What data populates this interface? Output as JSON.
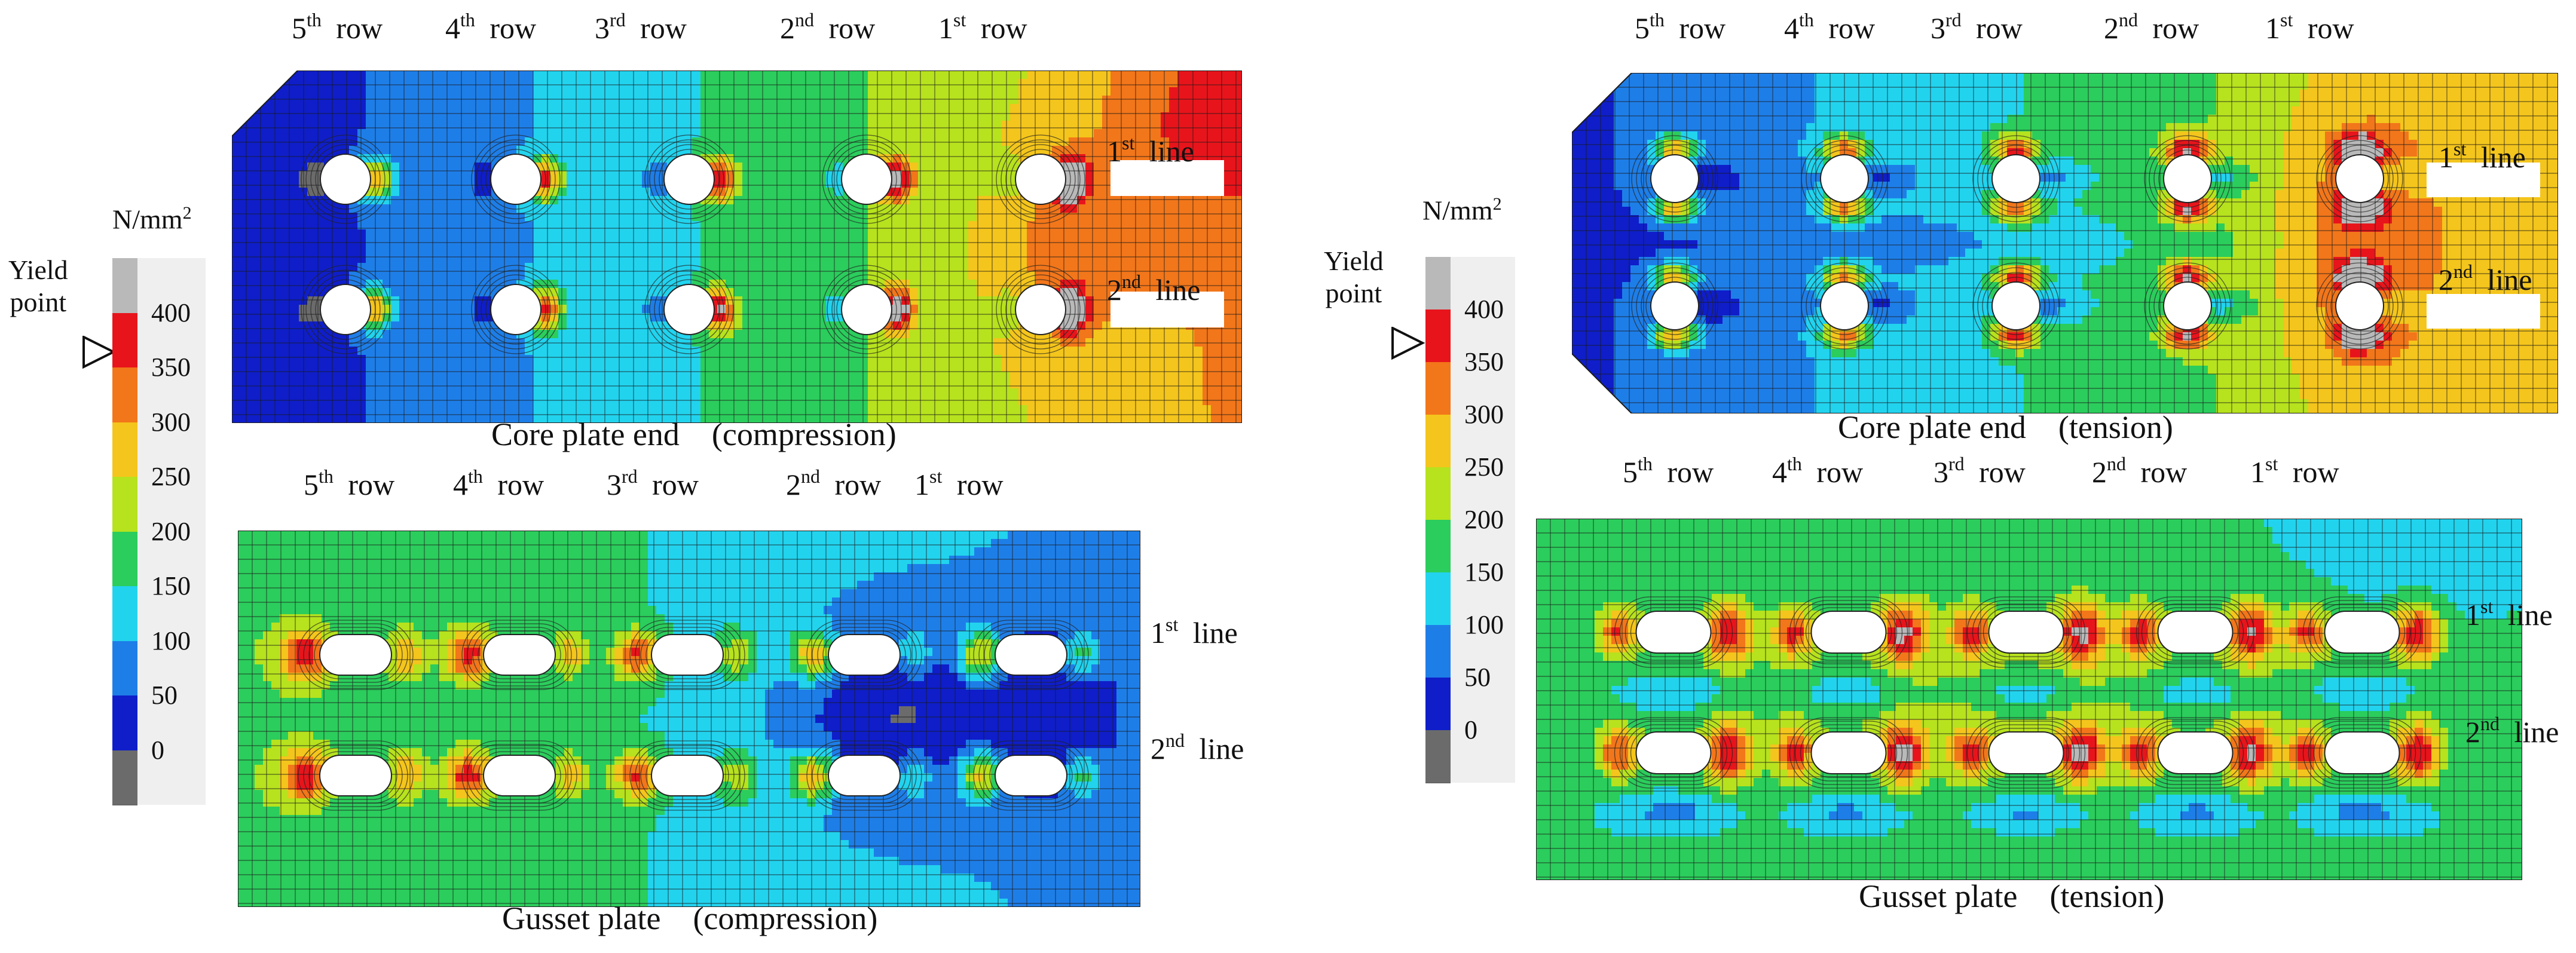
{
  "legend": {
    "unit_base": "N/mm",
    "unit_exp": "2",
    "yield_line1": "Yield",
    "yield_line2": "point",
    "ticks": [
      "400",
      "350",
      "300",
      "250",
      "200",
      "150",
      "100",
      "50",
      "0"
    ],
    "bands_top_to_bottom": [
      "#b9b9b9",
      "#e8141b",
      "#f2761a",
      "#f4c51c",
      "#b7e21e",
      "#2bcd5c",
      "#22d3ee",
      "#1e7ee8",
      "#0f1ec9",
      "#6b6b6b"
    ],
    "yield_stress": 350
  },
  "row_labels": [
    {
      "num": "5",
      "sup": "th",
      "word": "row"
    },
    {
      "num": "4",
      "sup": "th",
      "word": "row"
    },
    {
      "num": "3",
      "sup": "rd",
      "word": "row"
    },
    {
      "num": "2",
      "sup": "nd",
      "word": "row"
    },
    {
      "num": "1",
      "sup": "st",
      "word": "row"
    }
  ],
  "line_labels": [
    {
      "num": "1",
      "sup": "st",
      "word": "line"
    },
    {
      "num": "2",
      "sup": "nd",
      "word": "line"
    }
  ],
  "panels": {
    "core_compression": {
      "caption": "Core plate end　(compression)"
    },
    "core_tension": {
      "caption": "Core plate end　(tension)"
    },
    "gusset_compression": {
      "caption": "Gusset plate　(compression)"
    },
    "gusset_tension": {
      "caption": "Gusset plate　(tension)"
    }
  }
}
